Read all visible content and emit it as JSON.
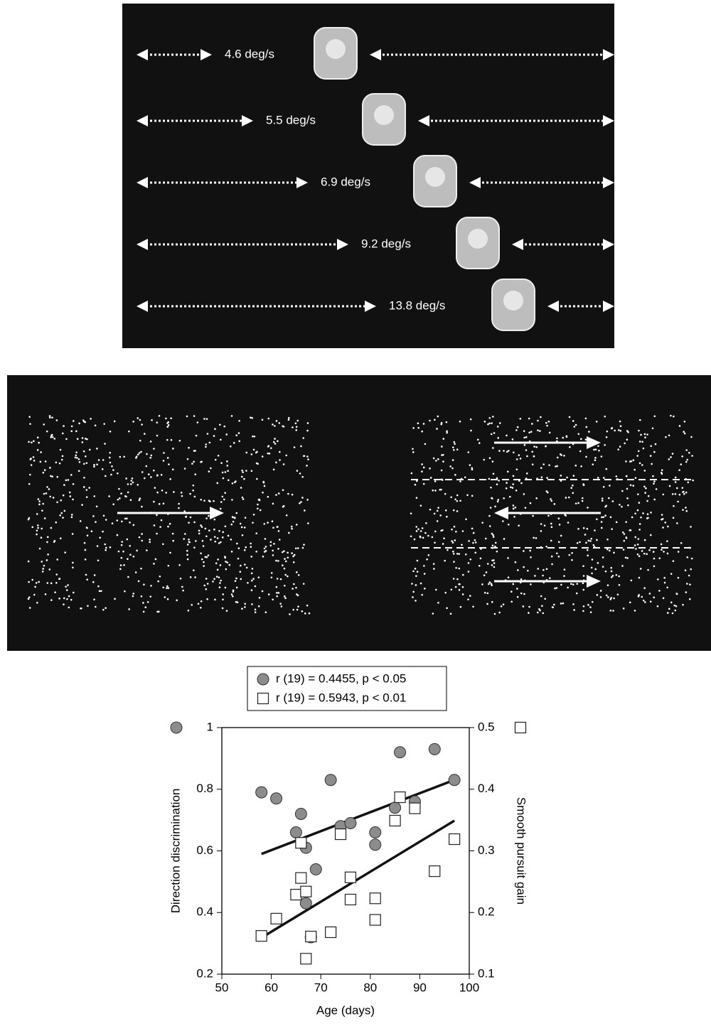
{
  "stimulus_speeds": [
    "4.6 deg/s",
    "5.5 deg/s",
    "6.9 deg/s",
    "9.2 deg/s",
    "13.8 deg/s"
  ],
  "chart_data": {
    "type": "scatter",
    "xlabel": "Age (days)",
    "ylabel": "Direction discrimination",
    "y2label": "Smooth pursuit gain",
    "xlim": [
      50,
      100
    ],
    "xticks": [
      50,
      60,
      70,
      80,
      90,
      100
    ],
    "ylim": [
      0.2,
      1
    ],
    "yticks": [
      0.2,
      0.4,
      0.6,
      0.8,
      1
    ],
    "y2lim": [
      0.1,
      0.5
    ],
    "y2ticks": [
      0.1,
      0.2,
      0.3,
      0.4,
      0.5
    ],
    "series": [
      {
        "name": "r (19) = 0.4455, p < 0.05",
        "marker": "circle",
        "color": "#8c8c8c",
        "x": [
          58,
          61,
          66,
          65,
          67,
          69,
          67,
          68,
          72,
          74,
          76,
          81,
          81,
          85,
          86,
          89,
          93,
          97
        ],
        "values": [
          0.79,
          0.77,
          0.72,
          0.66,
          0.61,
          0.54,
          0.43,
          0.32,
          0.83,
          0.68,
          0.69,
          0.66,
          0.62,
          0.74,
          0.92,
          0.76,
          0.93,
          0.83
        ],
        "trend": {
          "x": [
            58,
            97
          ],
          "values": [
            0.59,
            0.83
          ]
        }
      },
      {
        "name": "r (19) = 0.5943, p < 0.01",
        "marker": "square",
        "color": "#ffffff",
        "axis": "y2",
        "x": [
          58,
          61,
          65,
          66,
          66,
          67,
          67,
          68,
          72,
          74,
          76,
          76,
          81,
          81,
          85,
          86,
          89,
          93,
          97
        ],
        "values": [
          0.162,
          0.19,
          0.229,
          0.256,
          0.313,
          0.234,
          0.125,
          0.161,
          0.168,
          0.327,
          0.257,
          0.221,
          0.223,
          0.188,
          0.349,
          0.387,
          0.369,
          0.267,
          0.319
        ],
        "trend": {
          "x": [
            58,
            97
          ],
          "values": [
            0.159,
            0.349
          ]
        }
      }
    ]
  }
}
